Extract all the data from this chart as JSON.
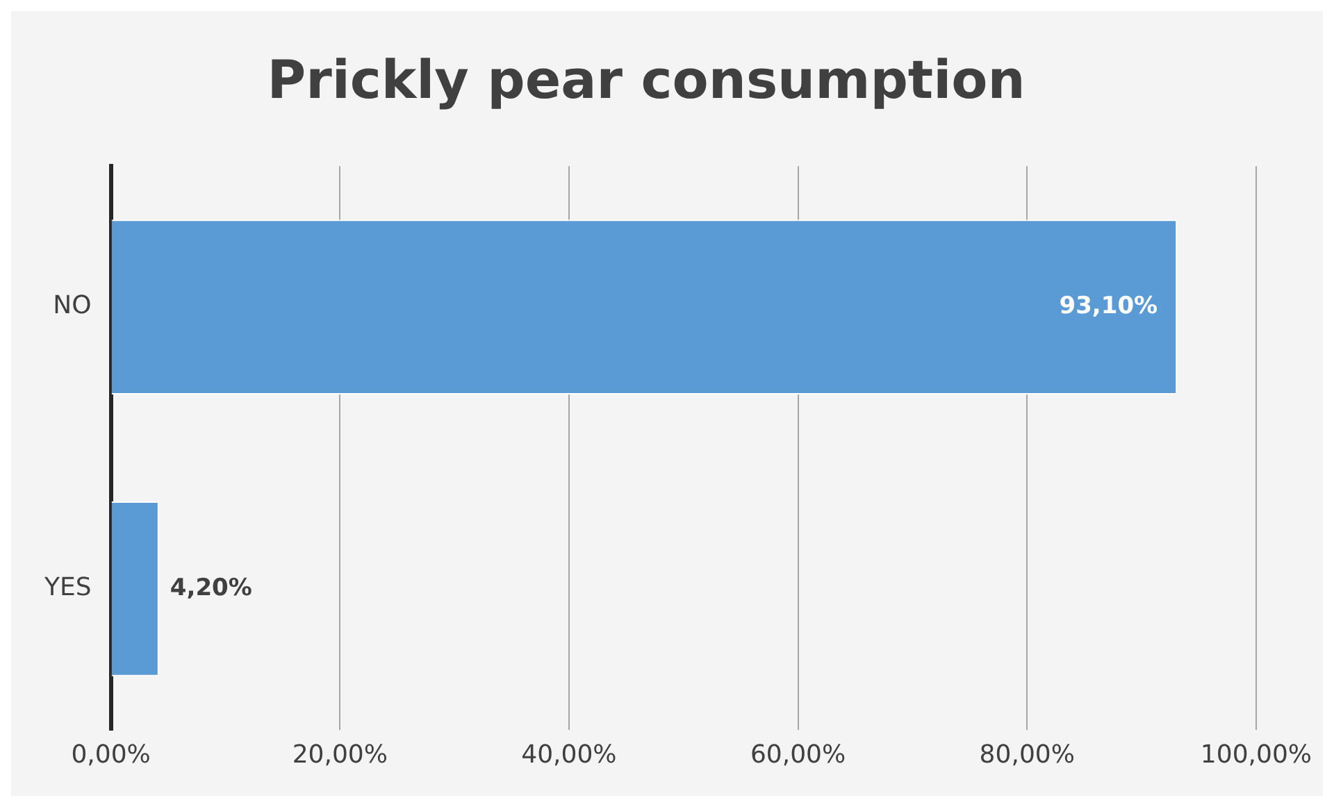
{
  "chart_data": {
    "type": "bar",
    "orientation": "horizontal",
    "title": "Prickly pear consumption",
    "categories": [
      "NO",
      "YES"
    ],
    "values": [
      93.1,
      4.2
    ],
    "value_labels": [
      "93,10%",
      "4,20%"
    ],
    "color": "#5b9bd5",
    "xlim": [
      0,
      100
    ],
    "xticks": [
      {
        "value": 0,
        "label": "0,00%"
      },
      {
        "value": 20,
        "label": "20,00%"
      },
      {
        "value": 40,
        "label": "40,00%"
      },
      {
        "value": 60,
        "label": "60,00%"
      },
      {
        "value": 80,
        "label": "80,00%"
      },
      {
        "value": 100,
        "label": "100,00%"
      }
    ],
    "grid": "x",
    "legend": false
  }
}
